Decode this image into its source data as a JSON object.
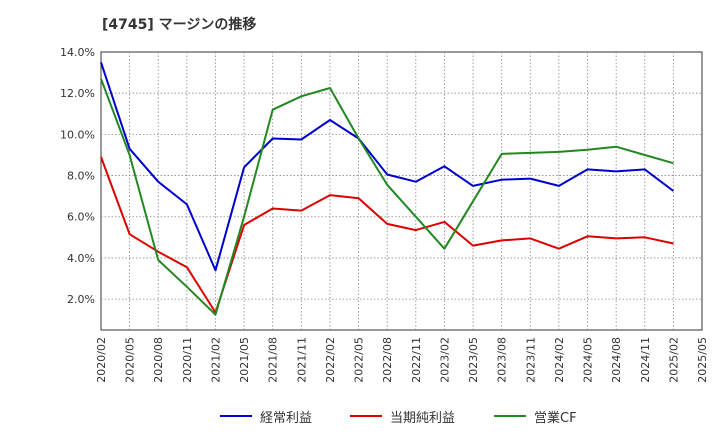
{
  "title": "[4745]  マージンの推移",
  "chart_data": {
    "type": "line",
    "x": [
      "2020/02",
      "2020/05",
      "2020/08",
      "2020/11",
      "2021/02",
      "2021/05",
      "2021/08",
      "2021/11",
      "2022/02",
      "2022/05",
      "2022/08",
      "2022/11",
      "2023/02",
      "2023/05",
      "2023/08",
      "2023/11",
      "2024/02",
      "2024/05",
      "2024/08",
      "2024/11",
      "2025/02",
      "2025/05"
    ],
    "ylim": [
      0.5,
      14.0
    ],
    "yticks": [
      2.0,
      4.0,
      6.0,
      8.0,
      10.0,
      12.0,
      14.0
    ],
    "ytick_labels": [
      "2.0%",
      "4.0%",
      "6.0%",
      "8.0%",
      "10.0%",
      "12.0%",
      "14.0%"
    ],
    "grid": true,
    "legend_position": "bottom",
    "series": [
      {
        "name": "経常利益",
        "color": "#0000cc",
        "values": [
          13.5,
          9.3,
          7.7,
          6.6,
          3.4,
          8.4,
          9.8,
          9.75,
          10.7,
          9.8,
          8.05,
          7.7,
          8.45,
          7.5,
          7.8,
          7.85,
          7.5,
          8.3,
          8.2,
          8.3,
          7.25,
          null
        ]
      },
      {
        "name": "当期純利益",
        "color": "#dd0000",
        "values": [
          8.9,
          5.15,
          4.3,
          3.55,
          1.35,
          5.6,
          6.4,
          6.3,
          7.05,
          6.9,
          5.65,
          5.35,
          5.75,
          4.6,
          4.85,
          4.95,
          4.45,
          5.05,
          4.95,
          5.0,
          4.7,
          null
        ]
      },
      {
        "name": "営業CF",
        "color": "#228822",
        "values": [
          12.7,
          9.0,
          3.9,
          2.6,
          1.25,
          6.0,
          11.2,
          11.85,
          12.25,
          9.8,
          7.55,
          6.0,
          4.45,
          6.75,
          9.05,
          9.1,
          9.15,
          9.25,
          9.4,
          9.0,
          8.6,
          null
        ]
      }
    ]
  }
}
